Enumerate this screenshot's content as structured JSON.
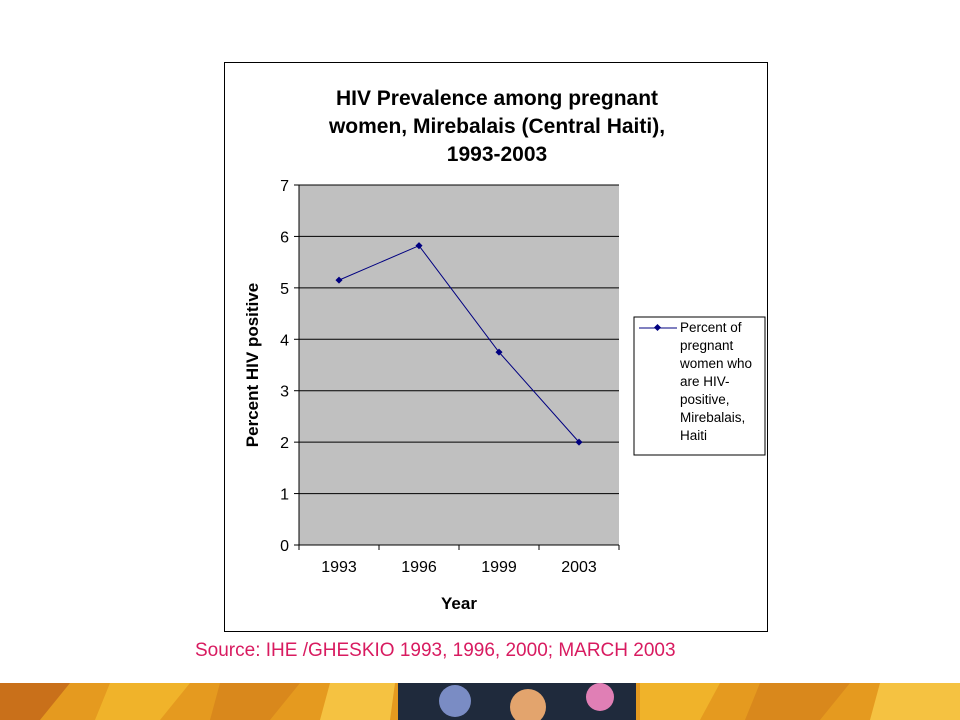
{
  "chart_data": {
    "type": "line",
    "title_lines": [
      "HIV Prevalence among pregnant",
      "women, Mirebalais (Central Haiti),",
      "1993-2003"
    ],
    "xlabel": "Year",
    "ylabel": "Percent HIV positive",
    "categories": [
      "1993",
      "1996",
      "1999",
      "2003"
    ],
    "series": [
      {
        "name_lines": [
          "Percent of",
          "pregnant",
          "women who",
          "are HIV-",
          "positive,",
          "Mirebalais,",
          "Haiti"
        ],
        "values": [
          5.15,
          5.82,
          3.75,
          2.0
        ],
        "color": "#000080"
      }
    ],
    "ylim": [
      0,
      7
    ],
    "yticks": [
      0,
      1,
      2,
      3,
      4,
      5,
      6,
      7
    ],
    "grid": true,
    "plot_background": "#c0c0c0",
    "legend_position": "right"
  },
  "source_text": "Source: IHE /GHESKIO 1993, 1996, 2000; MARCH 2003",
  "colors": {
    "source_text": "#d81b60",
    "banner_orange": "#e59a1f",
    "banner_dark": "#1f2a3c"
  }
}
